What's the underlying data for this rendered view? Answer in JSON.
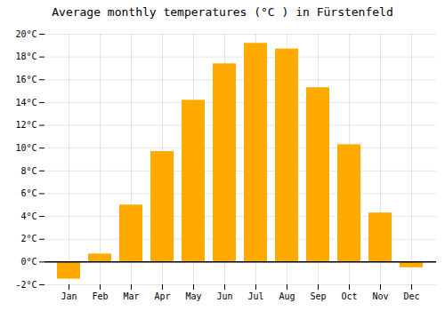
{
  "chart_data": {
    "type": "bar",
    "title": "Average monthly temperatures (°C ) in Fürstenfeld",
    "categories": [
      "Jan",
      "Feb",
      "Mar",
      "Apr",
      "May",
      "Jun",
      "Jul",
      "Aug",
      "Sep",
      "Oct",
      "Nov",
      "Dec"
    ],
    "values": [
      -1.5,
      0.7,
      5.0,
      9.7,
      14.2,
      17.4,
      19.2,
      18.7,
      15.3,
      10.3,
      4.3,
      -0.5
    ],
    "color": "#FFAA00",
    "ylim": [
      -2,
      20
    ],
    "yticks": [
      {
        "value": -2,
        "label": "-2°C"
      },
      {
        "value": 0,
        "label": "0°C"
      },
      {
        "value": 2,
        "label": "2°C"
      },
      {
        "value": 4,
        "label": "4°C"
      },
      {
        "value": 6,
        "label": "6°C"
      },
      {
        "value": 8,
        "label": "8°C"
      },
      {
        "value": 10,
        "label": "10°C"
      },
      {
        "value": 12,
        "label": "12°C"
      },
      {
        "value": 14,
        "label": "14°C"
      },
      {
        "value": 16,
        "label": "16°C"
      },
      {
        "value": 18,
        "label": "18°C"
      },
      {
        "value": 20,
        "label": "20°C"
      }
    ],
    "grid": true
  }
}
